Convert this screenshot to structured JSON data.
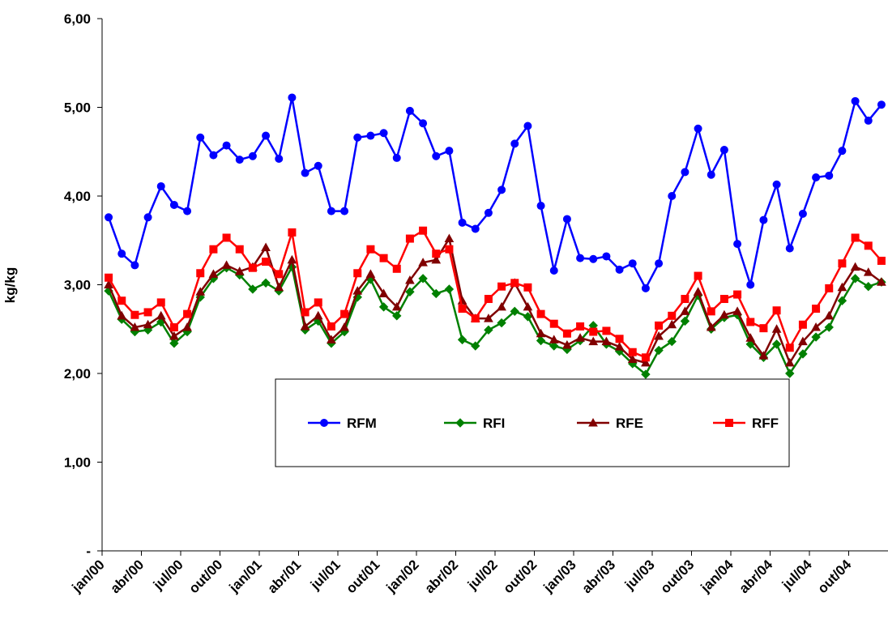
{
  "chart_data": {
    "type": "line",
    "y_label": "kg/kg",
    "categories": [
      "jan/00",
      null,
      null,
      "abr/00",
      null,
      null,
      "jul/00",
      null,
      null,
      "out/00",
      null,
      null,
      "jan/01",
      null,
      null,
      "abr/01",
      null,
      null,
      "jul/01",
      null,
      null,
      "out/01",
      null,
      null,
      "jan/02",
      null,
      null,
      "abr/02",
      null,
      null,
      "jul/02",
      null,
      null,
      "out/02",
      null,
      null,
      "jan/03",
      null,
      null,
      "abr/03",
      null,
      null,
      "jul/03",
      null,
      null,
      "out/03",
      null,
      null,
      "jan/04",
      null,
      null,
      "abr/04",
      null,
      null,
      "jul/04",
      null,
      null,
      "out/04",
      null,
      null
    ],
    "ylim": [
      0,
      6
    ],
    "yticks": [
      {
        "value": 0,
        "label": "-"
      },
      {
        "value": 1,
        "label": "1,00"
      },
      {
        "value": 2,
        "label": "2,00"
      },
      {
        "value": 3,
        "label": "3,00"
      },
      {
        "value": 4,
        "label": "4,00"
      },
      {
        "value": 5,
        "label": "5,00"
      },
      {
        "value": 6,
        "label": "6,00"
      }
    ],
    "grid": false,
    "legend": "center",
    "series": [
      {
        "name": "RFM",
        "color": "#0000ff",
        "marker": "circle",
        "values": [
          3.76,
          3.35,
          3.22,
          3.76,
          4.11,
          3.9,
          3.83,
          4.66,
          4.46,
          4.57,
          4.41,
          4.45,
          4.68,
          4.42,
          5.11,
          4.26,
          4.34,
          3.83,
          3.83,
          4.66,
          4.68,
          4.71,
          4.43,
          4.96,
          4.82,
          4.45,
          4.51,
          3.7,
          3.63,
          3.81,
          4.07,
          4.59,
          4.79,
          3.89,
          3.16,
          3.74,
          3.3,
          3.29,
          3.32,
          3.17,
          3.24,
          2.96,
          3.24,
          4.0,
          4.27,
          4.76,
          4.24,
          4.52,
          3.46,
          3.0,
          3.73,
          4.13,
          3.41,
          3.8,
          4.21,
          4.23,
          4.51,
          5.07,
          4.85,
          5.03
        ]
      },
      {
        "name": "RFI",
        "color": "#008000",
        "marker": "diamond",
        "values": [
          2.93,
          2.61,
          2.47,
          2.49,
          2.58,
          2.34,
          2.47,
          2.86,
          3.07,
          3.19,
          3.11,
          2.95,
          3.02,
          2.93,
          3.2,
          2.49,
          2.59,
          2.34,
          2.47,
          2.86,
          3.06,
          2.75,
          2.65,
          2.92,
          3.07,
          2.9,
          2.95,
          2.38,
          2.31,
          2.49,
          2.57,
          2.7,
          2.64,
          2.37,
          2.31,
          2.27,
          2.37,
          2.54,
          2.33,
          2.25,
          2.11,
          1.99,
          2.26,
          2.36,
          2.59,
          2.88,
          2.5,
          2.63,
          2.66,
          2.33,
          2.18,
          2.33,
          2.0,
          2.22,
          2.41,
          2.52,
          2.82,
          3.07,
          2.98,
          3.03
        ]
      },
      {
        "name": "RFE",
        "color": "#800000",
        "marker": "triangle",
        "values": [
          3.0,
          2.65,
          2.52,
          2.55,
          2.65,
          2.42,
          2.52,
          2.92,
          3.12,
          3.22,
          3.15,
          3.2,
          3.42,
          2.97,
          3.28,
          2.53,
          2.65,
          2.38,
          2.52,
          2.93,
          3.12,
          2.9,
          2.75,
          3.05,
          3.25,
          3.28,
          3.52,
          2.82,
          2.62,
          2.62,
          2.75,
          3.02,
          2.75,
          2.45,
          2.38,
          2.32,
          2.4,
          2.36,
          2.36,
          2.3,
          2.16,
          2.12,
          2.42,
          2.55,
          2.7,
          2.92,
          2.52,
          2.66,
          2.7,
          2.4,
          2.2,
          2.5,
          2.12,
          2.36,
          2.52,
          2.65,
          2.97,
          3.2,
          3.14,
          3.03
        ]
      },
      {
        "name": "RFF",
        "color": "#ff0000",
        "marker": "square",
        "values": [
          3.08,
          2.82,
          2.66,
          2.69,
          2.8,
          2.52,
          2.67,
          3.13,
          3.4,
          3.53,
          3.4,
          3.19,
          3.26,
          3.12,
          3.59,
          2.69,
          2.8,
          2.53,
          2.67,
          3.13,
          3.4,
          3.3,
          3.18,
          3.52,
          3.61,
          3.35,
          3.4,
          2.73,
          2.62,
          2.84,
          2.98,
          3.02,
          2.97,
          2.67,
          2.56,
          2.45,
          2.53,
          2.47,
          2.48,
          2.39,
          2.24,
          2.18,
          2.54,
          2.65,
          2.84,
          3.1,
          2.7,
          2.84,
          2.89,
          2.58,
          2.51,
          2.71,
          2.29,
          2.55,
          2.73,
          2.96,
          3.24,
          3.53,
          3.44,
          3.27
        ]
      }
    ]
  }
}
